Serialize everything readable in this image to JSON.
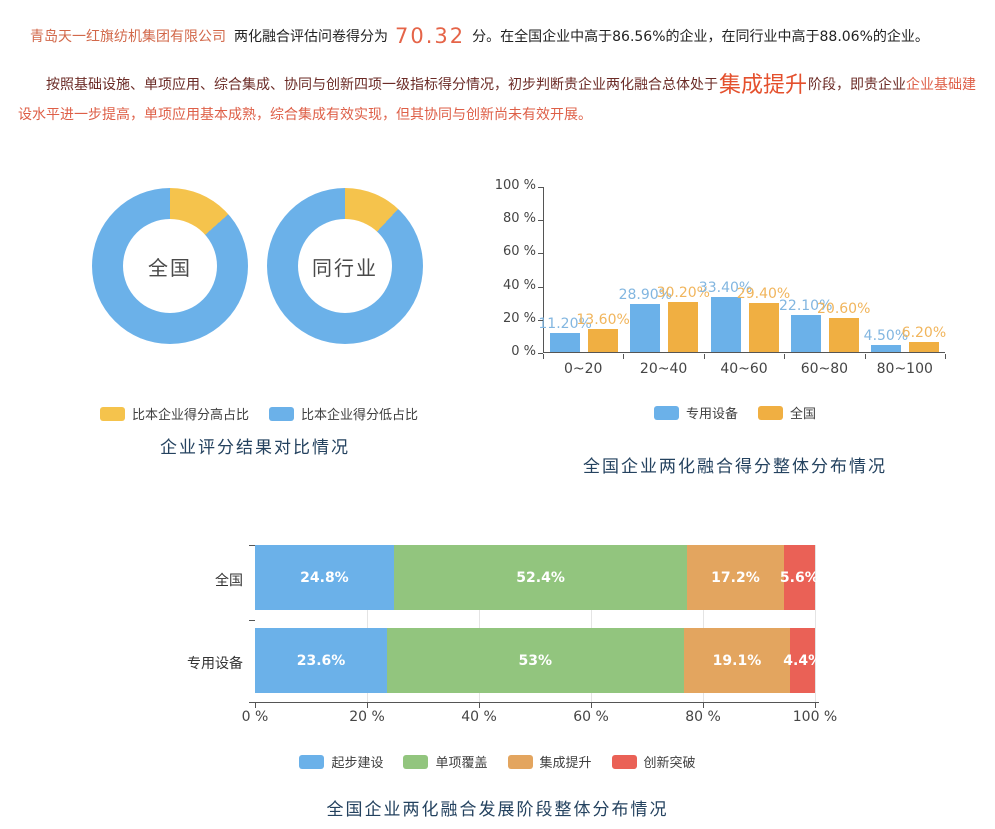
{
  "intro": {
    "company": "青岛天一红旗纺机集团有限公司",
    "score_prefix": "两化融合评估问卷得分为",
    "score": "70.32",
    "score_suffix": "分。在全国企业中高于86.56%的企业，在同行业中高于88.06%的企业。",
    "para2_lead": "按照基础设施、单项应用、综合集成、协同与创新四项一级指标得分情况，初步判断贵企业两化融合总体处于",
    "para2_stage": "集成提升",
    "para2_mid": "阶段，即贵企业",
    "para2_tail": "企业基础建设水平进一步提高，单项应用基本成熟，综合集成有效实现，但其协同与创新尚未有效开展。"
  },
  "colors": {
    "blue": "#6bb1e9",
    "donut_yellow": "#f5c34c",
    "bar_orange": "#f0af42",
    "stacked_green": "#92c57e",
    "stacked_orange": "#e3a55f",
    "stacked_red": "#ea6156",
    "title_navy": "#24425f",
    "company_orange": "#d2684a",
    "score_orange": "#e56448",
    "maroon_text": "#6b2b26",
    "red_text": "#de5f47"
  },
  "chart_data": [
    {
      "type": "pie",
      "subtype": "donut",
      "title": "企业评分结果对比情况",
      "legend_position": "bottom",
      "legend": [
        {
          "name": "比本企业得分高占比",
          "color": "#f5c34c"
        },
        {
          "name": "比本企业得分低占比",
          "color": "#6bb1e9"
        }
      ],
      "donuts": [
        {
          "center_label": "全国",
          "slices": [
            {
              "name": "比本企业得分高占比",
              "value": 13.44
            },
            {
              "name": "比本企业得分低占比",
              "value": 86.56
            }
          ]
        },
        {
          "center_label": "同行业",
          "slices": [
            {
              "name": "比本企业得分高占比",
              "value": 11.94
            },
            {
              "name": "比本企业得分低占比",
              "value": 88.06
            }
          ]
        }
      ]
    },
    {
      "type": "bar",
      "title": "全国企业两化融合得分整体分布情况",
      "categories": [
        "0~20",
        "20~40",
        "40~60",
        "60~80",
        "80~100"
      ],
      "series": [
        {
          "name": "专用设备",
          "color": "#6bb1e9",
          "label_color": "#82b6e0",
          "values": [
            11.2,
            28.9,
            33.4,
            22.1,
            4.5
          ],
          "labels": [
            "11.20%",
            "28.90%",
            "33.40%",
            "22.10%",
            "4.50%"
          ]
        },
        {
          "name": "全国",
          "color": "#f0af42",
          "label_color": "#f1b55c",
          "values": [
            13.6,
            30.2,
            29.4,
            20.6,
            6.2
          ],
          "labels": [
            "13.60%",
            "30.20%",
            "29.40%",
            "20.60%",
            "6.20%"
          ]
        }
      ],
      "ylim": [
        0,
        100
      ],
      "yticks": [
        {
          "value": 0,
          "label": "0 %"
        },
        {
          "value": 20,
          "label": "20 %"
        },
        {
          "value": 40,
          "label": "40 %"
        },
        {
          "value": 60,
          "label": "60 %"
        },
        {
          "value": 80,
          "label": "80 %"
        },
        {
          "value": 100,
          "label": "100 %"
        }
      ],
      "grid": false,
      "legend_position": "bottom"
    },
    {
      "type": "bar",
      "subtype": "stacked-horizontal",
      "title": "全国企业两化融合发展阶段整体分布情况",
      "categories": [
        "全国",
        "专用设备"
      ],
      "series": [
        {
          "name": "起步建设",
          "color": "#6bb1e9",
          "values": [
            24.8,
            23.6
          ],
          "labels": [
            "24.8%",
            "23.6%"
          ]
        },
        {
          "name": "单项覆盖",
          "color": "#92c57e",
          "values": [
            52.4,
            53
          ],
          "labels": [
            "52.4%",
            "53%"
          ]
        },
        {
          "name": "集成提升",
          "color": "#e3a55f",
          "values": [
            17.2,
            19.1
          ],
          "labels": [
            "17.2%",
            "19.1%"
          ]
        },
        {
          "name": "创新突破",
          "color": "#ea6156",
          "values": [
            5.6,
            4.4
          ],
          "labels": [
            "5.6%",
            "4.4%"
          ]
        }
      ],
      "xlim": [
        0,
        100
      ],
      "xticks": [
        "0 %",
        "20 %",
        "40 %",
        "60 %",
        "80 %",
        "100 %"
      ],
      "grid": true,
      "legend_position": "bottom"
    }
  ]
}
